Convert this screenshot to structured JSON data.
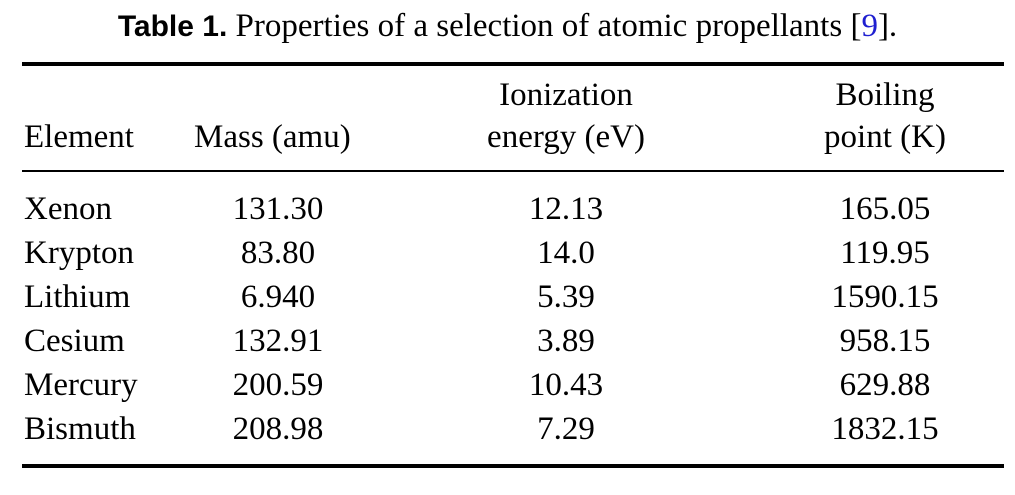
{
  "caption": {
    "label": "Table 1.",
    "text_before_ref": " Properties of a selection of atomic propellants [",
    "ref": "9",
    "text_after_ref": "]."
  },
  "headers": {
    "element": "Element",
    "mass": "Mass (amu)",
    "ionization_line1": "Ionization",
    "ionization_line2": "energy (eV)",
    "boiling_line1": "Boiling",
    "boiling_line2": "point (K)"
  },
  "rows": [
    {
      "element": "Xenon",
      "mass": "131.30",
      "ionization": "12.13",
      "boiling": "165.05"
    },
    {
      "element": "Krypton",
      "mass": "83.80",
      "ionization": "14.0",
      "boiling": "119.95"
    },
    {
      "element": "Lithium",
      "mass": "6.940",
      "ionization": "5.39",
      "boiling": "1590.15"
    },
    {
      "element": "Cesium",
      "mass": "132.91",
      "ionization": "3.89",
      "boiling": "958.15"
    },
    {
      "element": "Mercury",
      "mass": "200.59",
      "ionization": "10.43",
      "boiling": "629.88"
    },
    {
      "element": "Bismuth",
      "mass": "208.98",
      "ionization": "7.29",
      "boiling": "1832.15"
    }
  ]
}
